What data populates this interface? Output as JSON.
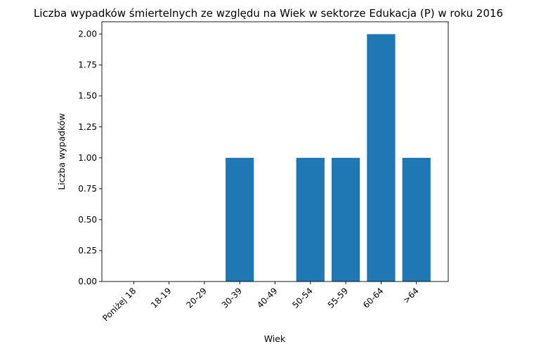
{
  "chart_data": {
    "type": "bar",
    "title": "Liczba wypadków śmiertelnych ze względu na Wiek w sektorze Edukacja  (P)   w roku 2016",
    "xlabel": "Wiek",
    "ylabel": "Liczba wypadków",
    "categories": [
      "Poniżej 18",
      "18-19",
      "20-29",
      "30-39",
      "40-49",
      "50-54",
      "55-59",
      "60-64",
      ">64"
    ],
    "values": [
      0,
      0,
      0,
      1,
      0,
      1,
      1,
      2,
      1
    ],
    "ylim": [
      0,
      2.1
    ],
    "yticks": [
      "0.00",
      "0.25",
      "0.50",
      "0.75",
      "1.00",
      "1.25",
      "1.50",
      "1.75",
      "2.00"
    ],
    "bar_color": "#1f77b4",
    "grid": false,
    "legend": "none"
  }
}
